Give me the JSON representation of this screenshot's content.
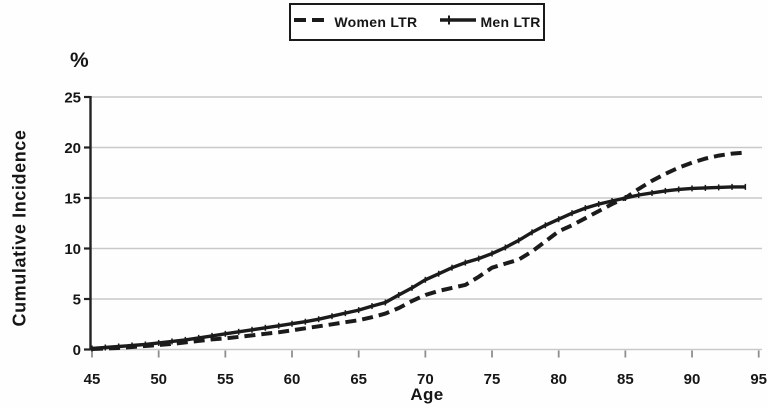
{
  "figure": {
    "percent_label": "%",
    "y_axis_title": "Cumulative Incidence",
    "x_axis_title": "Age"
  },
  "colors": {
    "line": "#1b1b1b",
    "grid": "#c9c9c9",
    "x_axis": "#b5b5b5",
    "x_tick": "#8f8f8f",
    "y_axis": "#222222",
    "text": "#161616",
    "background": "#fefefe",
    "legend_border": "#1a1a1a"
  },
  "chart_data": {
    "type": "line",
    "title": "",
    "xlabel": "Age",
    "ylabel": "Cumulative Incidence",
    "y_unit": "%",
    "xlim": [
      45,
      95
    ],
    "ylim": [
      0,
      25
    ],
    "x_ticks": [
      45,
      50,
      55,
      60,
      65,
      70,
      75,
      80,
      85,
      90,
      95
    ],
    "y_ticks": [
      0,
      5,
      10,
      15,
      20,
      25
    ],
    "grid": true,
    "legend_position": "top-center",
    "x": [
      45,
      46,
      47,
      48,
      49,
      50,
      51,
      52,
      53,
      54,
      55,
      56,
      57,
      58,
      59,
      60,
      61,
      62,
      63,
      64,
      65,
      66,
      67,
      68,
      69,
      70,
      71,
      72,
      73,
      74,
      75,
      76,
      77,
      78,
      79,
      80,
      81,
      82,
      83,
      84,
      85,
      86,
      87,
      88,
      89,
      90,
      91,
      92,
      93,
      94
    ],
    "series": [
      {
        "name": "Women LTR",
        "style": "dashed",
        "marker": "none",
        "values": [
          0.05,
          0.1,
          0.15,
          0.25,
          0.35,
          0.45,
          0.55,
          0.7,
          0.85,
          1.0,
          1.1,
          1.25,
          1.4,
          1.55,
          1.7,
          1.9,
          2.1,
          2.3,
          2.5,
          2.7,
          2.9,
          3.2,
          3.55,
          4.1,
          4.8,
          5.4,
          5.8,
          6.1,
          6.4,
          7.2,
          8.1,
          8.5,
          8.9,
          9.7,
          10.7,
          11.7,
          12.3,
          13.0,
          13.7,
          14.4,
          15.0,
          15.9,
          16.7,
          17.4,
          18.0,
          18.5,
          18.9,
          19.2,
          19.4,
          19.5
        ]
      },
      {
        "name": "Men LTR",
        "style": "solid",
        "marker": "plus",
        "values": [
          0.1,
          0.2,
          0.3,
          0.4,
          0.5,
          0.65,
          0.8,
          0.95,
          1.15,
          1.35,
          1.55,
          1.75,
          1.95,
          2.15,
          2.35,
          2.55,
          2.75,
          3.0,
          3.3,
          3.6,
          3.9,
          4.3,
          4.65,
          5.4,
          6.1,
          6.9,
          7.5,
          8.1,
          8.6,
          9.0,
          9.5,
          10.1,
          10.8,
          11.6,
          12.3,
          12.9,
          13.5,
          14.0,
          14.4,
          14.7,
          15.0,
          15.3,
          15.5,
          15.7,
          15.85,
          15.95,
          16.0,
          16.05,
          16.1,
          16.1
        ]
      }
    ]
  }
}
